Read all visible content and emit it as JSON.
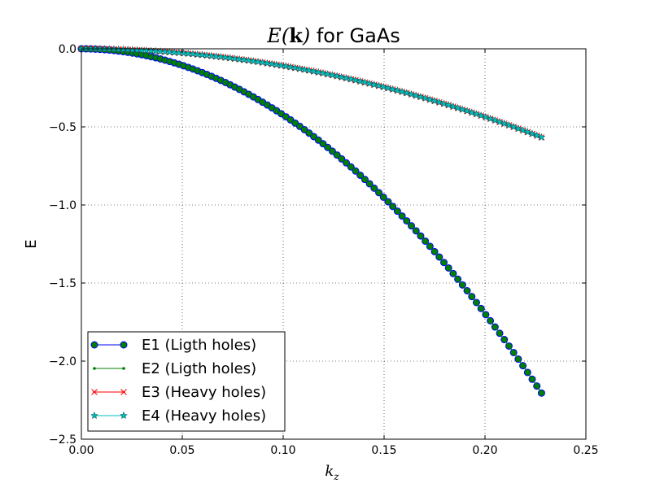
{
  "chart_data": {
    "type": "line",
    "title": {
      "math_E": "E",
      "math_open": "(",
      "math_k": "k",
      "math_close": ")",
      "rest": " for GaAs"
    },
    "xlabel": {
      "base": "k",
      "sub": "z"
    },
    "ylabel": "E",
    "xlim": [
      0.0,
      0.25
    ],
    "ylim": [
      -2.5,
      0.0
    ],
    "x_ticks": [
      "0.00",
      "0.05",
      "0.10",
      "0.15",
      "0.20",
      "0.25"
    ],
    "y_ticks": [
      "0.0",
      "−0.5",
      "−1.0",
      "−1.5",
      "−2.0",
      "−2.5"
    ],
    "x_tick_values": [
      0.0,
      0.05,
      0.1,
      0.15,
      0.2,
      0.25
    ],
    "y_tick_values": [
      0.0,
      -0.5,
      -1.0,
      -1.5,
      -2.0,
      -2.5
    ],
    "grid": true,
    "legend_position": "lower-left",
    "k_range": [
      0.0,
      0.228
    ],
    "num_points": 100,
    "series": [
      {
        "name": "E1 (Ligth holes)",
        "color": "#0000ff",
        "marker": "circle",
        "marker_face": "#007f00",
        "curvature": -42.4
      },
      {
        "name": "E2 (Ligth holes)",
        "color": "#008000",
        "marker": "point",
        "marker_face": "#008000",
        "curvature": -42.4
      },
      {
        "name": "E3 (Heavy holes)",
        "color": "#ff0000",
        "marker": "x",
        "marker_face": "#ff0000",
        "curvature": -10.9
      },
      {
        "name": "E4 (Heavy holes)",
        "color": "#00bfbf",
        "marker": "star",
        "marker_face": "#00bfbf",
        "curvature": -10.9
      }
    ]
  }
}
